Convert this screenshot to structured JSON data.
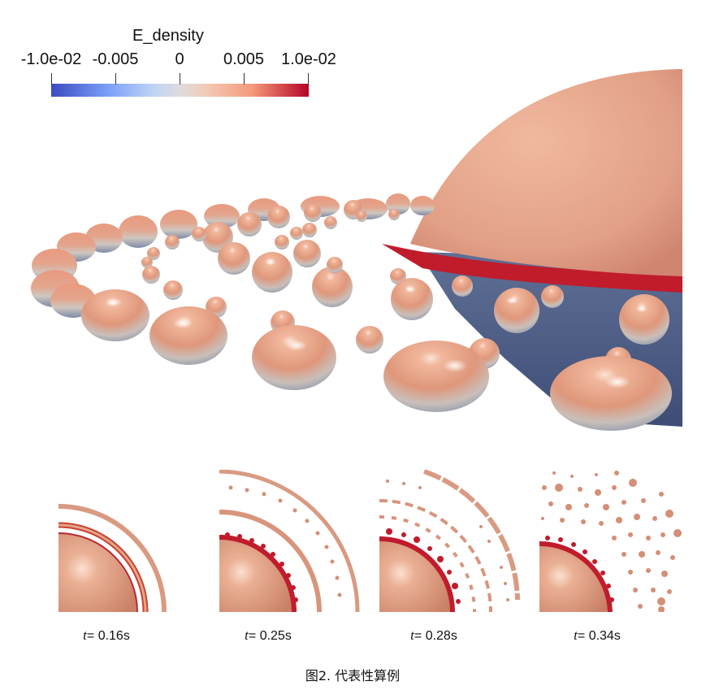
{
  "colorbar": {
    "title": "E_density",
    "ticks": [
      "-1.0e-02",
      "-0.005",
      "0",
      "0.005",
      "1.0e-02"
    ],
    "colors": [
      "#3b4cc0",
      "#dddcdc",
      "#b40426"
    ]
  },
  "panels": [
    {
      "t_symbol": "t",
      "t_value": "= 0.16s"
    },
    {
      "t_symbol": "t",
      "t_value": "= 0.25s"
    },
    {
      "t_symbol": "t",
      "t_value": "= 0.28s"
    },
    {
      "t_symbol": "t",
      "t_value": "= 0.34s"
    }
  ],
  "caption": "图2. 代表性算例"
}
